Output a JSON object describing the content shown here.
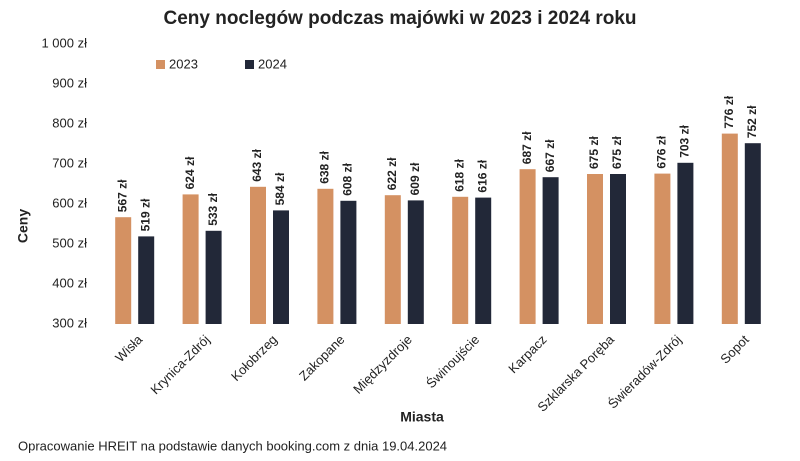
{
  "chart_data": {
    "type": "bar",
    "title": "Ceny noclegów podczas majówki w 2023 i 2024 roku",
    "x_label": "Miasta",
    "y_label": "Ceny",
    "source": "Opracowanie HREIT na podstawie danych booking.com z dnia 19.04.2024",
    "categories": [
      "Wisła",
      "Krynica-Zdrój",
      "Kołobrzeg",
      "Zakopane",
      "Międzyzdroje",
      "Świnoujście",
      "Karpacz",
      "Szklarska Poręba",
      "Świeradów-Zdrój",
      "Sopot"
    ],
    "series": [
      {
        "name": "2023",
        "color": "#d49162",
        "values": [
          567,
          624,
          643,
          638,
          622,
          618,
          687,
          675,
          676,
          776
        ],
        "value_labels": [
          "567 zł",
          "624 zł",
          "643 zł",
          "638 zł",
          "622 zł",
          "618 zł",
          "687 zł",
          "675 zł",
          "676 zł",
          "776 zł"
        ]
      },
      {
        "name": "2024",
        "color": "#222838",
        "values": [
          519,
          533,
          584,
          608,
          609,
          616,
          667,
          675,
          703,
          752
        ],
        "value_labels": [
          "519 zł",
          "533 zł",
          "584 zł",
          "608 zł",
          "609 zł",
          "616 zł",
          "667 zł",
          "675 zł",
          "703 zł",
          "752 zł"
        ]
      }
    ],
    "ylim": [
      300,
      1000
    ],
    "yticks": [
      {
        "value": 300,
        "label": "300 zł"
      },
      {
        "value": 400,
        "label": "400 zł"
      },
      {
        "value": 500,
        "label": "500 zł"
      },
      {
        "value": 600,
        "label": "600 zł"
      },
      {
        "value": 700,
        "label": "700 zł"
      },
      {
        "value": 800,
        "label": "800 zł"
      },
      {
        "value": 900,
        "label": "900 zł"
      },
      {
        "value": 1000,
        "label": "1 000 zł"
      }
    ],
    "grid": false,
    "legend": "top-left"
  }
}
